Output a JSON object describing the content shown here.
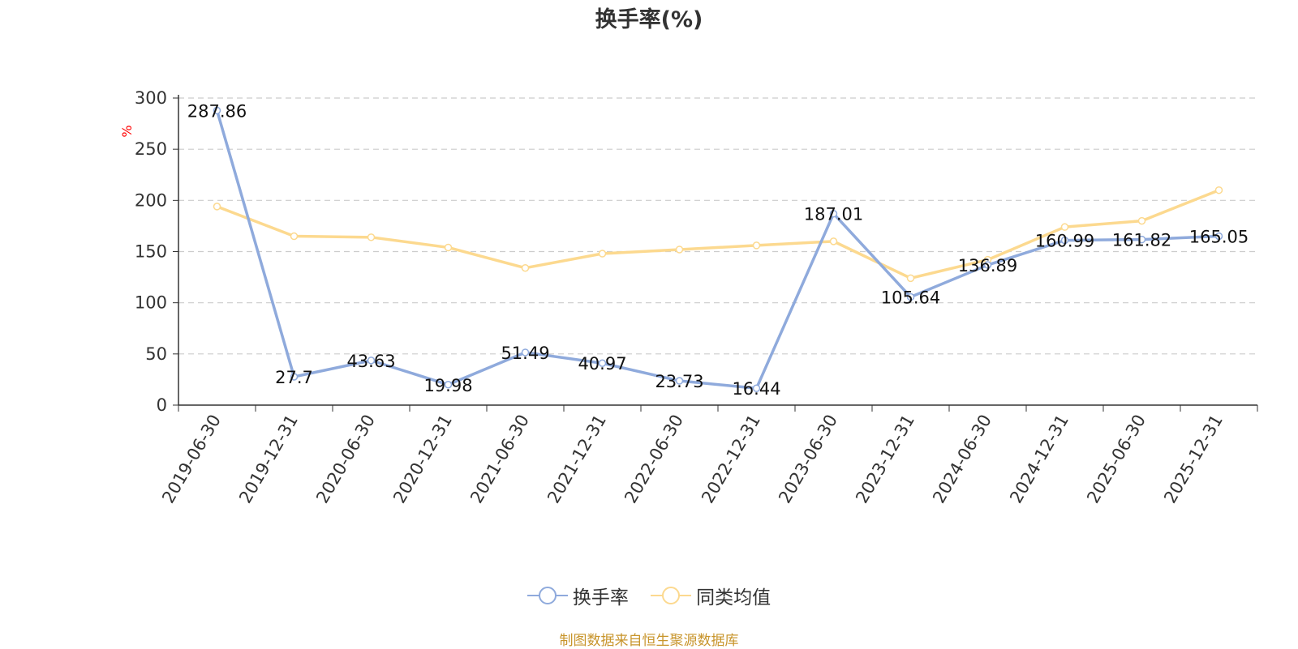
{
  "chart_data": {
    "type": "line",
    "title": "换手率(%)",
    "ylabel": "%",
    "xlabel": "",
    "categories": [
      "2019-06-30",
      "2019-12-31",
      "2020-06-30",
      "2020-12-31",
      "2021-06-30",
      "2021-12-31",
      "2022-06-30",
      "2022-12-31",
      "2023-06-30",
      "2023-12-31",
      "2024-06-30",
      "2024-12-31",
      "2025-06-30",
      "2025-12-31"
    ],
    "y_ticks": [
      "0",
      "50",
      "100",
      "150",
      "200",
      "250",
      "300"
    ],
    "ylim": [
      0,
      300
    ],
    "grid": true,
    "legend_position": "bottom",
    "series": [
      {
        "name": "换手率",
        "color": "#8faadc",
        "show_labels": true,
        "values": [
          287.86,
          27.7,
          43.63,
          19.98,
          51.49,
          40.97,
          23.73,
          16.44,
          187.01,
          105.64,
          136.89,
          160.99,
          161.82,
          165.05
        ],
        "labels": [
          "287.86",
          "27.7",
          "43.63",
          "19.98",
          "51.49",
          "40.97",
          "23.73",
          "16.44",
          "187.01",
          "105.64",
          "136.89",
          "160.99",
          "161.82",
          "165.05"
        ]
      },
      {
        "name": "同类均值",
        "color": "#fcd98f",
        "show_labels": false,
        "values": [
          194,
          165,
          164,
          154,
          134,
          148,
          152,
          156,
          160,
          124,
          142,
          174,
          180,
          210
        ]
      }
    ]
  },
  "source": {
    "text": "制图数据来自恒生聚源数据库",
    "color": "#c8952c"
  },
  "ylabel_color": "#ff0000"
}
